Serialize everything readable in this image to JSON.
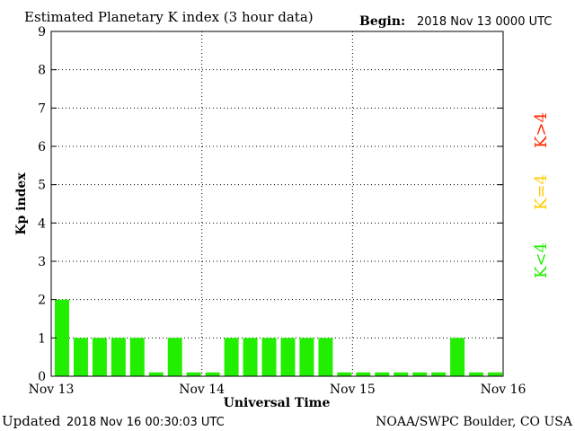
{
  "header": {
    "title": "Estimated Planetary K index (3 hour data)",
    "begin_label": "Begin:",
    "begin_value": "2018 Nov 13 0000 UTC"
  },
  "footer": {
    "updated_label": "Updated",
    "updated_value": "2018 Nov 16 00:30:03 UTC",
    "source": "NOAA/SWPC Boulder, CO USA"
  },
  "legend": [
    {
      "label": "K>4",
      "color": "#ff2a00"
    },
    {
      "label": "K=4",
      "color": "#ffcc00"
    },
    {
      "label": "K<4",
      "color": "#22ee00"
    }
  ],
  "chart_data": {
    "type": "bar",
    "title": "Estimated Planetary K index (3 hour data)",
    "xlabel": "Universal Time",
    "ylabel": "Kp index",
    "ylim": [
      0,
      9
    ],
    "yticks": [
      0,
      1,
      2,
      3,
      4,
      5,
      6,
      7,
      8,
      9
    ],
    "xlim": [
      "2018-11-13 00:00",
      "2018-11-16 00:00"
    ],
    "x_ticks": [
      {
        "label": "Nov 13",
        "day_index": 0
      },
      {
        "label": "Nov 14",
        "day_index": 1
      },
      {
        "label": "Nov 15",
        "day_index": 2
      },
      {
        "label": "Nov 16",
        "day_index": 3
      }
    ],
    "grid": true,
    "bar_color": "#22ee00",
    "categories": [
      "Nov 13 00",
      "Nov 13 03",
      "Nov 13 06",
      "Nov 13 09",
      "Nov 13 12",
      "Nov 13 15",
      "Nov 13 18",
      "Nov 13 21",
      "Nov 14 00",
      "Nov 14 03",
      "Nov 14 06",
      "Nov 14 09",
      "Nov 14 12",
      "Nov 14 15",
      "Nov 14 18",
      "Nov 14 21",
      "Nov 15 00",
      "Nov 15 03",
      "Nov 15 06",
      "Nov 15 09",
      "Nov 15 12",
      "Nov 15 15",
      "Nov 15 18",
      "Nov 15 21"
    ],
    "values": [
      2,
      1,
      1,
      1,
      1,
      0,
      1,
      0,
      0,
      1,
      1,
      1,
      1,
      1,
      1,
      0,
      0,
      0,
      0,
      0,
      0,
      1,
      0,
      0
    ]
  }
}
